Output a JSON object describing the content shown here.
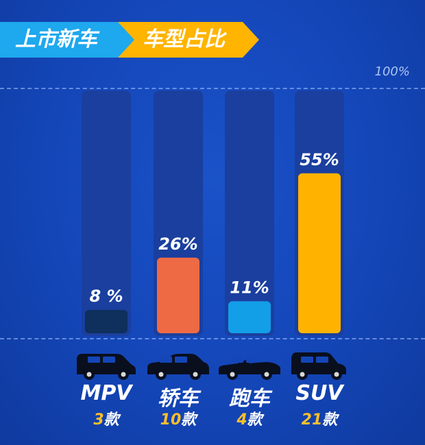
{
  "header": {
    "part1": "上市新车",
    "part2": "车型占比"
  },
  "reference_label": "100%",
  "colors": {
    "background": "#1446b8",
    "track": "#1a3f9e",
    "header_blue": "#1ea8ee",
    "header_orange": "#ffb400"
  },
  "chart_data": {
    "type": "bar",
    "categories": [
      "MPV",
      "轿车",
      "跑车",
      "SUV"
    ],
    "values": [
      8,
      26,
      11,
      55
    ],
    "value_labels": [
      "8 %",
      "26%",
      "11%",
      "55%"
    ],
    "counts": [
      {
        "num": "3",
        "unit": "款"
      },
      {
        "num": "10",
        "unit": "款"
      },
      {
        "num": "4",
        "unit": "款"
      },
      {
        "num": "21",
        "unit": "款"
      }
    ],
    "colors": [
      "#0f2f5c",
      "#ee6a45",
      "#139ee8",
      "#ffb300"
    ],
    "ylim": [
      0,
      100
    ],
    "icons": [
      "mpv-car-icon",
      "sedan-car-icon",
      "sports-car-icon",
      "suv-car-icon"
    ]
  }
}
